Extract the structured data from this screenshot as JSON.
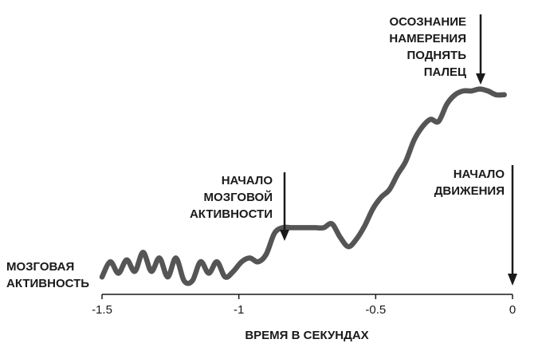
{
  "chart_data": {
    "type": "line",
    "title": "",
    "xlabel": "ВРЕМЯ В СЕКУНДАХ",
    "ylabel_lines": [
      "МОЗГОВАЯ",
      "АКТИВНОСТЬ"
    ],
    "xlim": [
      -1.5,
      0
    ],
    "ylim": [
      0,
      1
    ],
    "x_ticks": [
      -1.5,
      -1,
      -0.5,
      0
    ],
    "x_tick_labels": [
      "-1.5",
      "-1",
      "-0.5",
      "0"
    ],
    "grid": false,
    "series": [
      {
        "name": "",
        "color": "#555555",
        "x": [
          -1.5,
          -1.47,
          -1.44,
          -1.41,
          -1.38,
          -1.35,
          -1.32,
          -1.29,
          -1.26,
          -1.23,
          -1.2,
          -1.17,
          -1.14,
          -1.11,
          -1.08,
          -1.05,
          -1.02,
          -0.99,
          -0.96,
          -0.93,
          -0.9,
          -0.87,
          -0.84,
          -0.81,
          -0.78,
          -0.75,
          -0.72,
          -0.69,
          -0.66,
          -0.63,
          -0.6,
          -0.57,
          -0.54,
          -0.51,
          -0.48,
          -0.45,
          -0.42,
          -0.39,
          -0.36,
          -0.33,
          -0.3,
          -0.27,
          -0.24,
          -0.21,
          -0.18,
          -0.15,
          -0.12,
          -0.09,
          -0.06,
          -0.03
        ],
        "values": [
          0.02,
          0.1,
          0.04,
          0.11,
          0.05,
          0.15,
          0.05,
          0.12,
          0.02,
          0.12,
          0.0,
          0.0,
          0.1,
          0.04,
          0.1,
          0.02,
          0.05,
          0.1,
          0.12,
          0.1,
          0.14,
          0.25,
          0.28,
          0.28,
          0.28,
          0.28,
          0.28,
          0.28,
          0.3,
          0.23,
          0.18,
          0.22,
          0.29,
          0.38,
          0.44,
          0.48,
          0.56,
          0.63,
          0.74,
          0.81,
          0.85,
          0.84,
          0.93,
          0.98,
          1.0,
          1.0,
          1.01,
          1.0,
          0.98,
          0.98
        ]
      }
    ],
    "annotations": [
      {
        "id": "activity-start",
        "lines": [
          "НАЧАЛО",
          "МОЗГОВОЙ",
          "АКТИВНОСТИ"
        ],
        "x": -0.82
      },
      {
        "id": "awareness",
        "lines": [
          "ОСОЗНАНИЕ",
          "НАМЕРЕНИЯ",
          "ПОДНЯТЬ",
          "ПАЛЕЦ"
        ],
        "x": -0.12
      },
      {
        "id": "movement-start",
        "lines": [
          "НАЧАЛО",
          "ДВИЖЕНИЯ"
        ],
        "x": 0
      }
    ]
  }
}
